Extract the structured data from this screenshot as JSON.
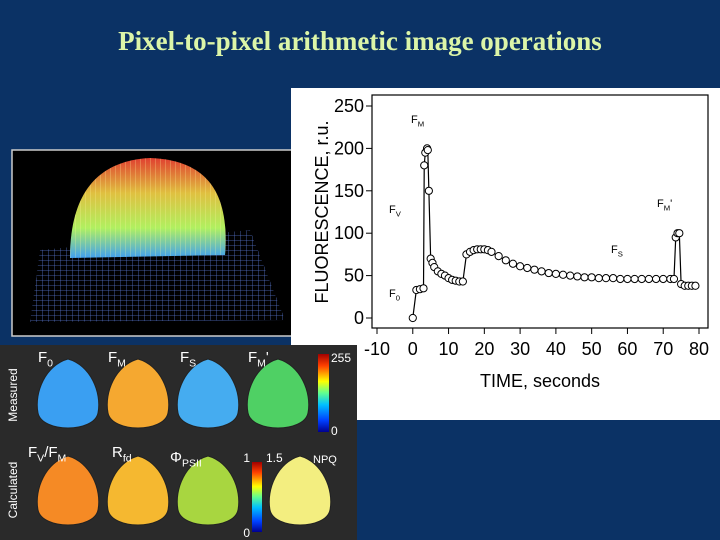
{
  "title": "Pixel-to-pixel arithmetic image operations",
  "chart_data": {
    "type": "line",
    "xlabel": "TIME, seconds",
    "ylabel": "FLUORESCENCE, r.u.",
    "x": [
      0,
      1,
      2,
      3,
      3.2,
      3.5,
      4,
      4.2,
      4.5,
      5,
      5.5,
      6,
      7,
      8,
      9,
      10,
      11,
      12,
      13,
      14,
      15,
      16,
      17,
      18,
      19,
      20,
      21,
      22,
      24,
      26,
      28,
      30,
      32,
      34,
      36,
      38,
      40,
      42,
      44,
      46,
      48,
      50,
      52,
      54,
      56,
      58,
      60,
      62,
      64,
      66,
      68,
      70,
      72,
      73,
      73.5,
      74,
      74.5,
      75,
      76,
      77,
      78,
      79
    ],
    "values": [
      0,
      33,
      34,
      35,
      180,
      195,
      200,
      198,
      150,
      70,
      65,
      60,
      55,
      52,
      50,
      47,
      45,
      44,
      43,
      43,
      75,
      78,
      80,
      81,
      81,
      81,
      80,
      78,
      73,
      68,
      64,
      61,
      59,
      57,
      55,
      53,
      52,
      51,
      50,
      49,
      48,
      48,
      47,
      47,
      47,
      46,
      46,
      46,
      46,
      46,
      46,
      46,
      46,
      46,
      95,
      100,
      100,
      40,
      38,
      38,
      38,
      38
    ],
    "color": "#000000",
    "xlim": [
      -10,
      80
    ],
    "ylim": [
      0,
      250
    ],
    "xticks": [
      -10,
      0,
      10,
      20,
      30,
      40,
      50,
      60,
      70,
      80
    ],
    "yticks": [
      0,
      50,
      100,
      150,
      200,
      250
    ],
    "annotations": [
      {
        "parts": [
          {
            "text": "F"
          },
          {
            "text": "M",
            "sub": true
          }
        ]
      },
      {
        "parts": [
          {
            "text": "F"
          },
          {
            "text": "V",
            "sub": true
          }
        ]
      },
      {
        "parts": [
          {
            "text": "F"
          },
          {
            "text": "M",
            "sub": true
          },
          {
            "text": "'"
          }
        ]
      },
      {
        "parts": [
          {
            "text": "F"
          },
          {
            "text": "S",
            "sub": true
          }
        ]
      },
      {
        "parts": [
          {
            "text": "F"
          },
          {
            "text": "0",
            "sub": true
          }
        ]
      }
    ]
  },
  "leaf_panel": {
    "row_labels": [
      "Measured",
      "Calculated"
    ],
    "images": [
      {
        "parts": [
          {
            "text": "F"
          },
          {
            "text": "0",
            "sub": true
          }
        ]
      },
      {
        "parts": [
          {
            "text": "F"
          },
          {
            "text": "M",
            "sub": true
          }
        ]
      },
      {
        "parts": [
          {
            "text": "F"
          },
          {
            "text": "S",
            "sub": true
          }
        ]
      },
      {
        "parts": [
          {
            "text": "F"
          },
          {
            "text": "M",
            "sub": true
          },
          {
            "text": "'"
          }
        ]
      },
      {
        "parts": [
          {
            "text": "F"
          },
          {
            "text": "V",
            "sub": true
          },
          {
            "text": "/F"
          },
          {
            "text": "M",
            "sub": true
          }
        ]
      },
      {
        "parts": [
          {
            "text": "R"
          },
          {
            "text": "fd",
            "sub": true
          }
        ]
      },
      {
        "parts": [
          {
            "text": "Φ"
          },
          {
            "text": "PSII",
            "sub": true
          }
        ]
      },
      {
        "parts": [
          {
            "text": "NPQ"
          }
        ]
      }
    ],
    "scale_labels": [
      "255",
      "0",
      "1",
      "1.5",
      "0"
    ]
  }
}
